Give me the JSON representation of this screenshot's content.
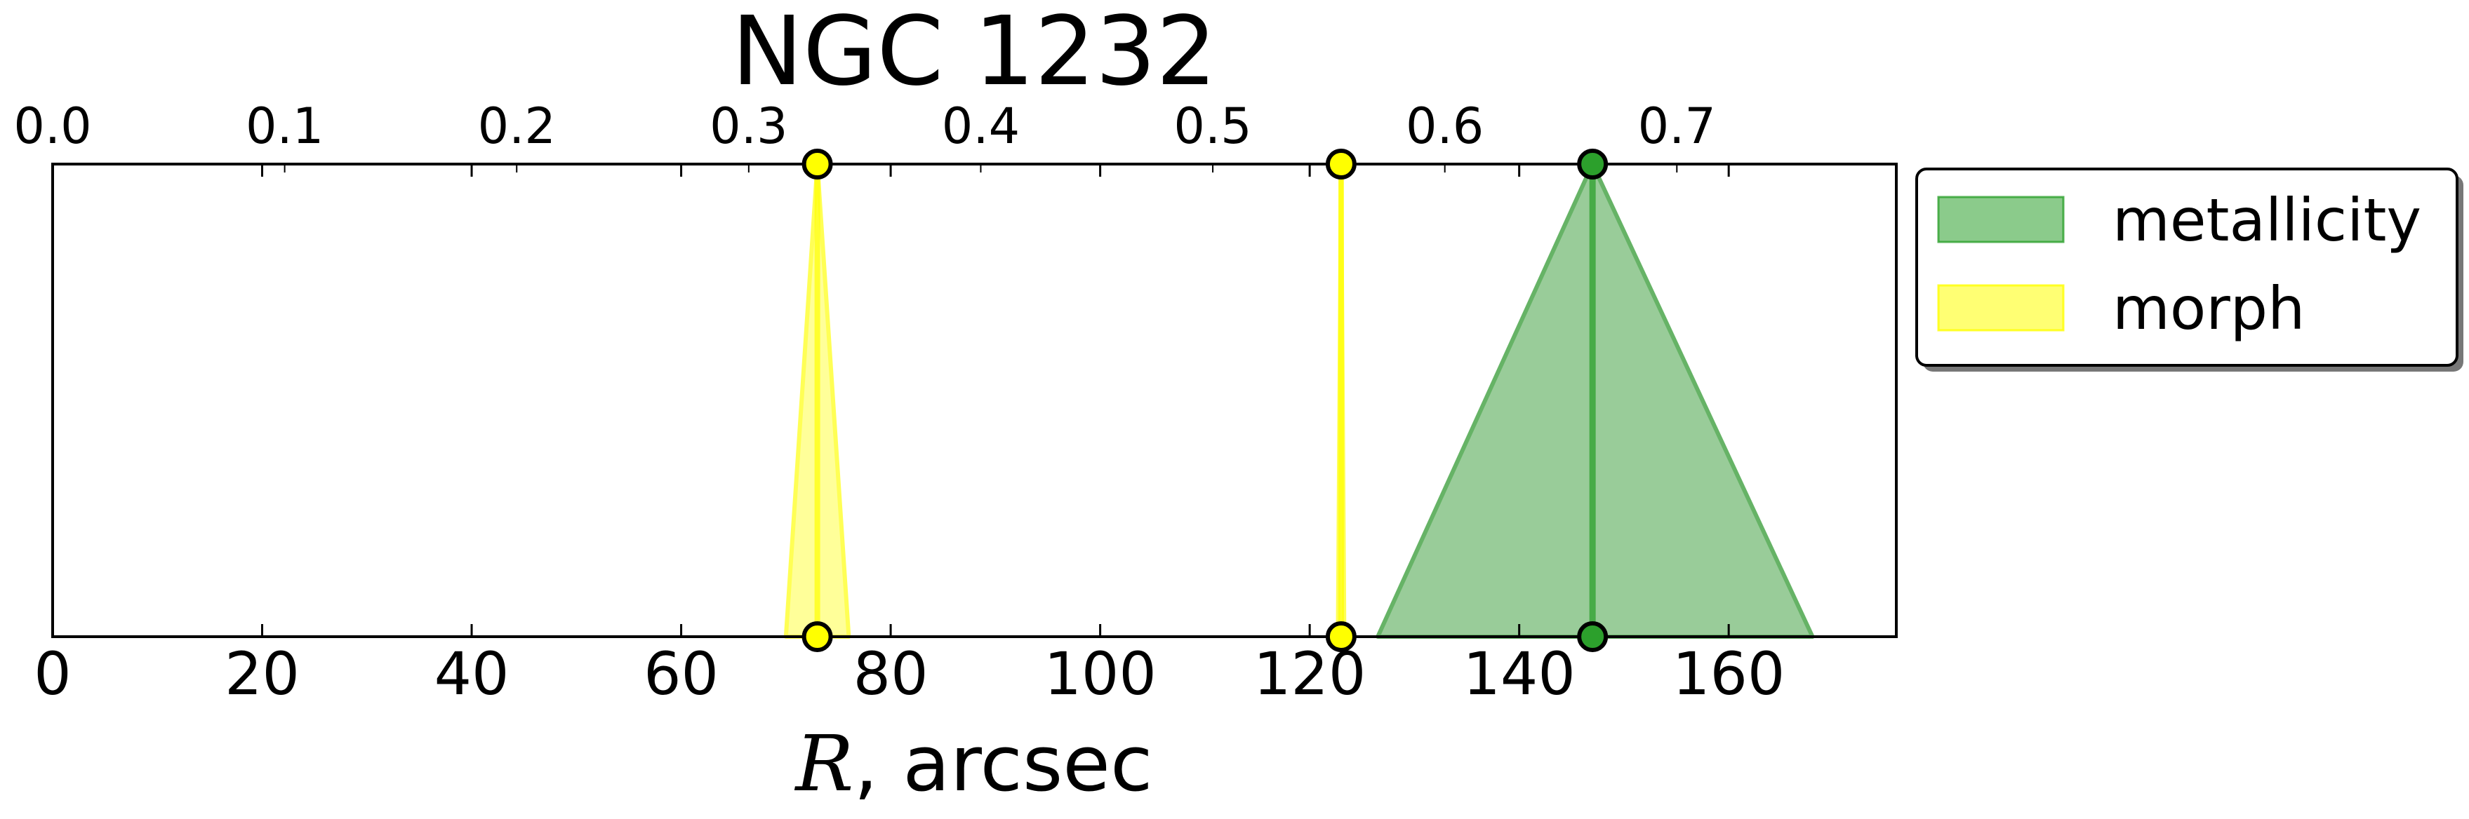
{
  "chart_data": {
    "type": "area",
    "title": "NGC 1232",
    "xlabel": {
      "symbol": "R",
      "suffix": ", arcsec"
    },
    "xlim": [
      0,
      176
    ],
    "ylim": [
      0,
      1
    ],
    "xticks": [
      "0",
      "20",
      "40",
      "60",
      "80",
      "100",
      "120",
      "140",
      "160"
    ],
    "top_axis": {
      "ticks": [
        "0.0",
        "0.1",
        "0.2",
        "0.3",
        "0.4",
        "0.5",
        "0.6",
        "0.7"
      ],
      "scale_arcsec_per_unit": 221.5
    },
    "grid": false,
    "legend": {
      "placement": "outside-right-top",
      "entries": [
        {
          "label": "metallicity",
          "color": "#2ca02c"
        },
        {
          "label": "morph",
          "color": "#ffff00"
        }
      ]
    },
    "series": [
      {
        "name": "metallicity",
        "color": "#2ca02c",
        "fill_color": "#99cc99",
        "edge_color": "#66b366",
        "center": 147.0,
        "lower": 126.5,
        "upper": 168.0
      },
      {
        "name": "morph",
        "color": "#ffff00",
        "fill_color": "#ffff99",
        "edge_color": "#ffff55",
        "center": 73.0,
        "lower": 70.0,
        "upper": 76.0
      },
      {
        "name": "morph",
        "color": "#ffff00",
        "fill_color": "#ffff99",
        "edge_color": "#ffff55",
        "center": 123.0,
        "lower": 122.7,
        "upper": 123.3
      }
    ]
  }
}
